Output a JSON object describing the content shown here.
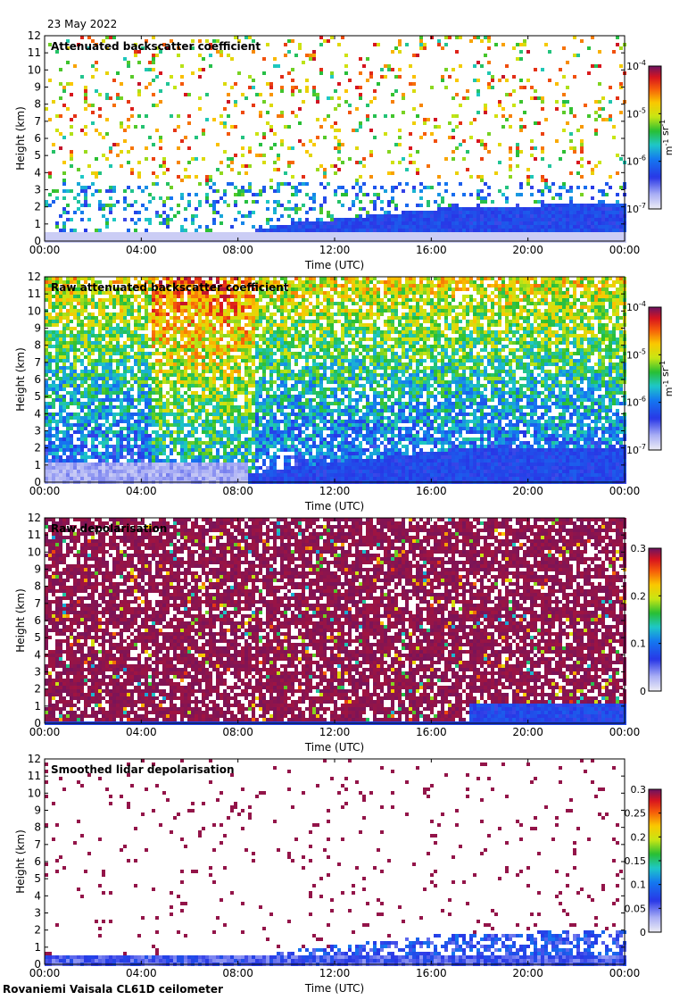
{
  "date_label": "23 May 2022",
  "footer": "Rovaniemi Vaisala CL61D ceilometer",
  "chart_data": [
    {
      "type": "heatmap",
      "title": "Attenuated backscatter coefficient",
      "xlabel": "Time (UTC)",
      "ylabel": "Height (km)",
      "x_ticks": [
        "00:00",
        "04:00",
        "08:00",
        "12:00",
        "16:00",
        "20:00",
        "00:00"
      ],
      "y_ticks": [
        "0",
        "1",
        "2",
        "3",
        "4",
        "5",
        "6",
        "7",
        "8",
        "9",
        "10",
        "11",
        "12"
      ],
      "ylim": [
        0,
        12
      ],
      "colorbar": {
        "scale": "log",
        "ticks": [
          "10-7",
          "10-6",
          "10-5",
          "10-4"
        ],
        "unit_label": "m-1 sr-1",
        "range": [
          1e-07,
          0.0001
        ]
      },
      "colormap": "rainbow-white-to-purple"
    },
    {
      "type": "heatmap",
      "title": "Raw attenuated backscatter coefficient",
      "xlabel": "Time (UTC)",
      "ylabel": "Height (km)",
      "x_ticks": [
        "00:00",
        "04:00",
        "08:00",
        "12:00",
        "16:00",
        "20:00",
        "00:00"
      ],
      "y_ticks": [
        "0",
        "1",
        "2",
        "3",
        "4",
        "5",
        "6",
        "7",
        "8",
        "9",
        "10",
        "11",
        "12"
      ],
      "ylim": [
        0,
        12
      ],
      "colorbar": {
        "scale": "log",
        "ticks": [
          "10-7",
          "10-6",
          "10-5",
          "10-4"
        ],
        "unit_label": "m-1 sr-1",
        "range": [
          1e-07,
          0.0001
        ]
      },
      "colormap": "rainbow-white-to-purple"
    },
    {
      "type": "heatmap",
      "title": "Raw depolarisation",
      "xlabel": "Time (UTC)",
      "ylabel": "Height (km)",
      "x_ticks": [
        "00:00",
        "04:00",
        "08:00",
        "12:00",
        "16:00",
        "20:00",
        "00:00"
      ],
      "y_ticks": [
        "0",
        "1",
        "2",
        "3",
        "4",
        "5",
        "6",
        "7",
        "8",
        "9",
        "10",
        "11",
        "12"
      ],
      "ylim": [
        0,
        12
      ],
      "colorbar": {
        "scale": "linear",
        "ticks": [
          "0",
          "0.1",
          "0.2",
          "0.3"
        ],
        "unit_label": "",
        "range": [
          0,
          0.3
        ]
      },
      "colormap": "rainbow-white-to-purple"
    },
    {
      "type": "heatmap",
      "title": "Smoothed lidar depolarisation",
      "xlabel": "Time (UTC)",
      "ylabel": "Height (km)",
      "x_ticks": [
        "00:00",
        "04:00",
        "08:00",
        "12:00",
        "16:00",
        "20:00",
        "00:00"
      ],
      "y_ticks": [
        "0",
        "1",
        "2",
        "3",
        "4",
        "5",
        "6",
        "7",
        "8",
        "9",
        "10",
        "11",
        "12"
      ],
      "ylim": [
        0,
        12
      ],
      "colorbar": {
        "scale": "linear",
        "ticks": [
          "0",
          "0.05",
          "0.1",
          "0.15",
          "0.2",
          "0.25",
          "0.3"
        ],
        "unit_label": "",
        "range": [
          0,
          0.3
        ]
      },
      "colormap": "rainbow-white-to-purple"
    }
  ]
}
